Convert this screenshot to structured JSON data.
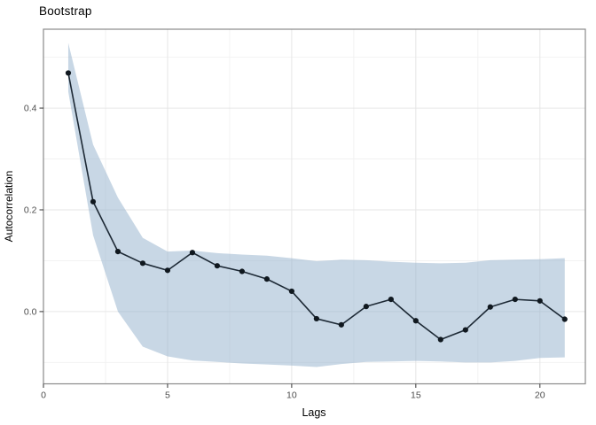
{
  "chart_data": {
    "type": "line",
    "title": "Bootstrap",
    "xlabel": "Lags",
    "ylabel": "Autocorrelation",
    "x": [
      1,
      2,
      3,
      4,
      5,
      6,
      7,
      8,
      9,
      10,
      11,
      12,
      13,
      14,
      15,
      16,
      17,
      18,
      19,
      20,
      21
    ],
    "series": [
      {
        "name": "autocorrelation",
        "values": [
          0.469,
          0.216,
          0.118,
          0.095,
          0.081,
          0.116,
          0.09,
          0.079,
          0.064,
          0.04,
          -0.014,
          -0.026,
          0.01,
          0.024,
          -0.018,
          -0.055,
          -0.036,
          0.009,
          0.024,
          0.021,
          -0.015
        ]
      }
    ],
    "ribbon": {
      "name": "bootstrap-confidence-band",
      "upper": [
        0.528,
        0.328,
        0.224,
        0.145,
        0.118,
        0.12,
        0.115,
        0.112,
        0.11,
        0.105,
        0.099,
        0.102,
        0.101,
        0.098,
        0.096,
        0.095,
        0.096,
        0.101,
        0.102,
        0.103,
        0.105
      ],
      "lower": [
        0.432,
        0.15,
        0.0,
        -0.069,
        -0.088,
        -0.096,
        -0.099,
        -0.102,
        -0.104,
        -0.106,
        -0.109,
        -0.103,
        -0.099,
        -0.098,
        -0.097,
        -0.098,
        -0.1,
        -0.1,
        -0.097,
        -0.091,
        -0.09
      ]
    },
    "x_ticks": {
      "values": [
        0,
        5,
        10,
        15,
        20
      ],
      "labels": [
        "0",
        "5",
        "10",
        "15",
        "20"
      ],
      "minor": [
        2.5,
        7.5,
        12.5,
        17.5
      ]
    },
    "y_ticks": {
      "values": [
        0,
        0.2,
        0.4
      ],
      "labels": [
        "0.0",
        "0.2",
        "0.4"
      ],
      "minor": [
        -0.1,
        0.1,
        0.3,
        0.5
      ]
    },
    "xlim": [
      0,
      21.83
    ],
    "ylim": [
      -0.142,
      0.555
    ],
    "grid": "major+minor",
    "legend": "none",
    "colors": {
      "ribbon_fill": "#91afcb",
      "ribbon_opacity": 0.5,
      "line": "#1d2935",
      "point": "#10181f",
      "panel_border": "#8a8a8a",
      "panel_bg": "#ffffff",
      "grid_major": "#e6e6e6",
      "grid_minor": "#f2f2f2",
      "tick_mark": "#333333",
      "tick_label": "#4d4d4d",
      "title": "#000000"
    }
  }
}
